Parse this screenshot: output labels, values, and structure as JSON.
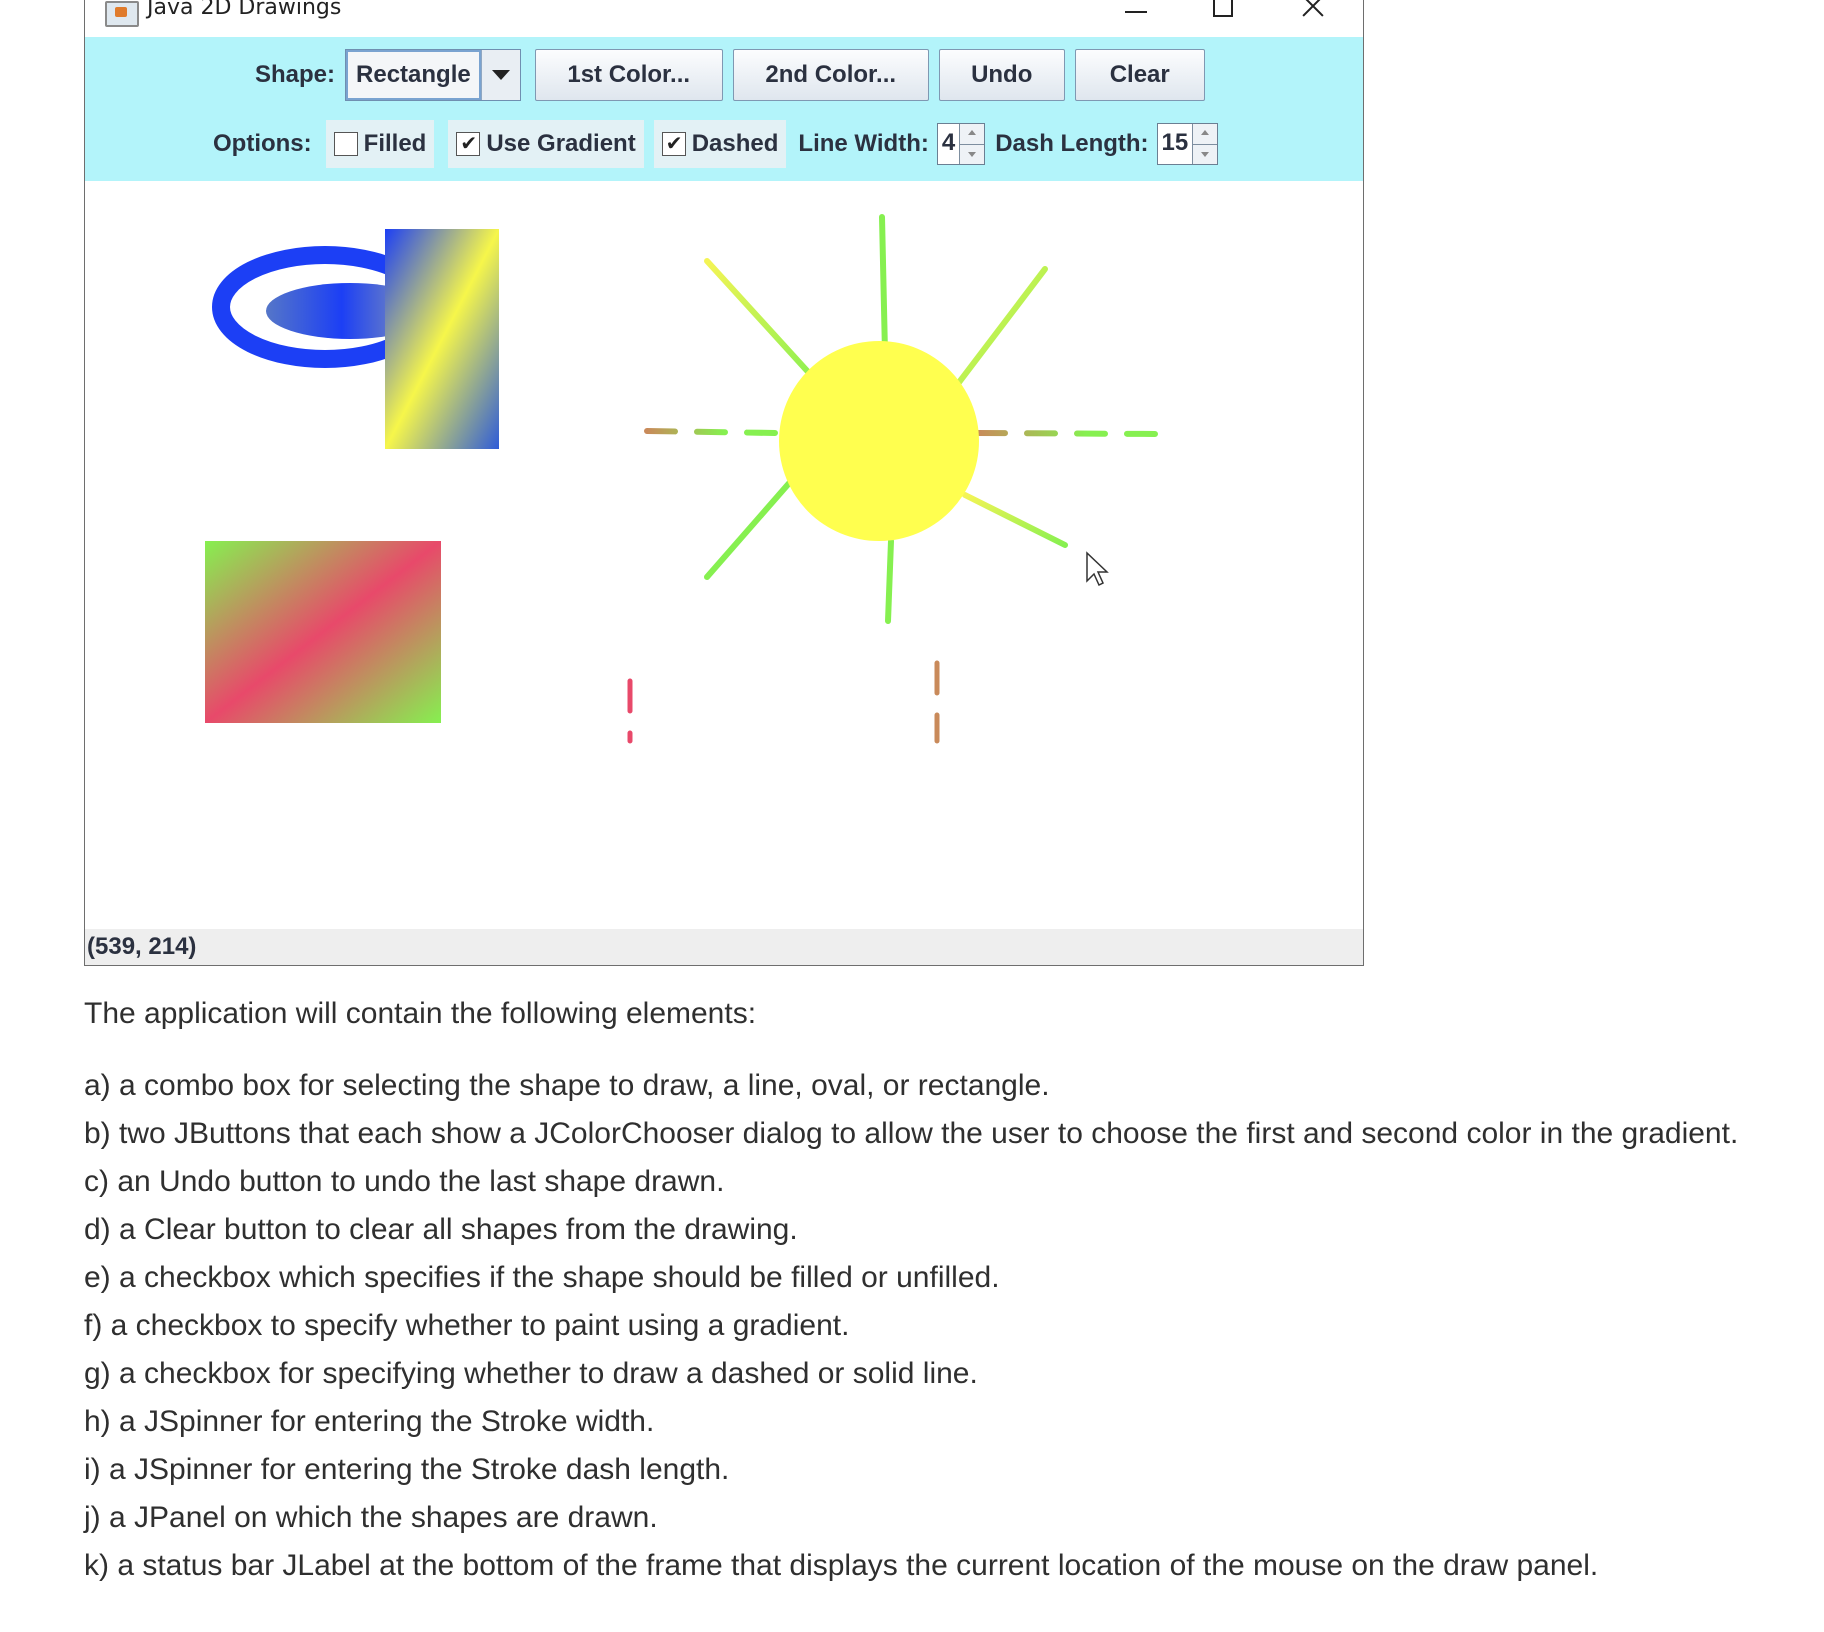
{
  "window": {
    "title": "Java 2D Drawings"
  },
  "toolbar": {
    "shape_label": "Shape:",
    "shape_value": "Rectangle",
    "color1_label": "1st Color...",
    "color2_label": "2nd Color...",
    "undo_label": "Undo",
    "clear_label": "Clear",
    "options_label": "Options:",
    "filled": {
      "label": "Filled",
      "checked": false
    },
    "gradient": {
      "label": "Use Gradient",
      "checked": true
    },
    "dashed": {
      "label": "Dashed",
      "checked": true
    },
    "line_width_label": "Line Width:",
    "line_width_value": "4",
    "dash_length_label": "Dash Length:",
    "dash_length_value": "15"
  },
  "status": {
    "text": "(539, 214)"
  },
  "colors": {
    "toolbar_bg": "#b3f4fa",
    "blue": "#1c3ff5",
    "yellow": "#ffff4f",
    "green": "#86f050",
    "red": "#e8496a"
  },
  "document": {
    "intro": "The application will contain the following elements:",
    "items": [
      "a) a combo box for selecting the shape to draw, a line, oval, or rectangle.",
      "b) two JButtons that each show a JColorChooser dialog to allow the user to choose the first and second color in the gradient.",
      "c) an Undo button to undo the last shape drawn.",
      "d) a Clear button to clear all shapes from the drawing.",
      "e) a checkbox which specifies if the shape should be filled or unfilled.",
      "f) a checkbox to specify whether to paint using a gradient.",
      "g) a checkbox for specifying whether to draw a dashed or solid line.",
      "h) a JSpinner for entering the Stroke width.",
      "i) a JSpinner for entering the Stroke dash length.",
      "j) a JPanel on which the shapes are drawn.",
      "k) a status bar JLabel at the bottom of the frame that displays the current location of the mouse on the draw panel."
    ]
  }
}
